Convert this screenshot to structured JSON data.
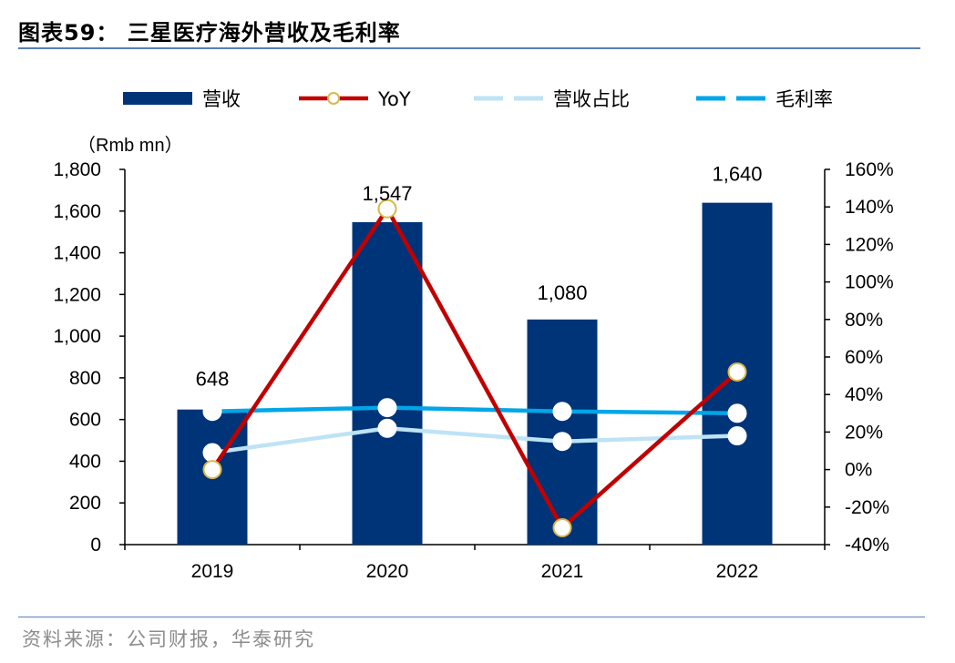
{
  "title": "图表59：  三星医疗海外营收及毛利率",
  "source": "资料来源：公司财报，华泰研究",
  "chart_data": {
    "type": "bar",
    "unit_label": "（Rmb mn）",
    "categories": [
      "2019",
      "2020",
      "2021",
      "2022"
    ],
    "y_left": {
      "range": [
        0,
        1800
      ],
      "ticks": [
        "0",
        "200",
        "400",
        "600",
        "800",
        "1,000",
        "1,200",
        "1,400",
        "1,600",
        "1,800"
      ]
    },
    "y_right": {
      "range": [
        -40,
        160
      ],
      "ticks": [
        "-40%",
        "-20%",
        "0%",
        "20%",
        "40%",
        "60%",
        "80%",
        "100%",
        "120%",
        "140%",
        "160%"
      ]
    },
    "legend_position": "top",
    "series": [
      {
        "name": "营收",
        "type": "bar",
        "axis": "left",
        "color": "#003478",
        "values": [
          648,
          1547,
          1080,
          1640
        ],
        "data_labels": [
          "648",
          "1,547",
          "1,080",
          "1,640"
        ]
      },
      {
        "name": "YoY",
        "type": "line",
        "axis": "right",
        "color": "#c00000",
        "marker_edge": "#d9b84a",
        "values": [
          0,
          139,
          -31,
          52
        ]
      },
      {
        "name": "营收占比",
        "type": "line",
        "axis": "right",
        "color": "#bde3f5",
        "marker_edge": "#ffffff",
        "values": [
          9,
          22,
          15,
          18
        ]
      },
      {
        "name": "毛利率",
        "type": "line",
        "axis": "right",
        "color": "#00a6e8",
        "marker_edge": "#ffffff",
        "values": [
          31,
          33,
          31,
          30
        ]
      }
    ]
  }
}
